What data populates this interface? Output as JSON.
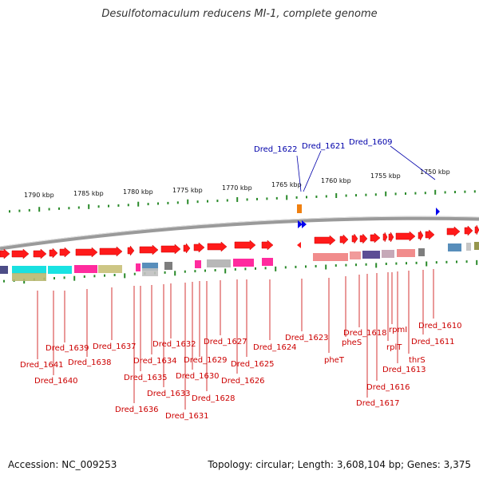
{
  "title": "Desulfotomaculum reducens MI-1, complete genome",
  "footer": {
    "accession": "Accession: NC_009253",
    "info": "Topology: circular; Length: 3,608,104 bp; Genes: 3,375"
  },
  "colors": {
    "forward_gene": "#ff1a1a",
    "reverse_gene": "#0000ee",
    "ruler_tick": "#2a8a2a",
    "label_red": "#cc0000",
    "label_blue": "#0000aa"
  },
  "kbp_labels": [
    "1790 kbp",
    "1785 kbp",
    "1780 kbp",
    "1775 kbp",
    "1770 kbp",
    "1765 kbp",
    "1760 kbp",
    "1755 kbp",
    "1750 kbp"
  ],
  "top_labels": [
    "Dred_1622",
    "Dred_1621",
    "Dred_1609"
  ],
  "bottom_labels": [
    "Dred_1641",
    "Dred_1640",
    "Dred_1639",
    "Dred_1638",
    "Dred_1637",
    "Dred_1636",
    "Dred_1635",
    "Dred_1634",
    "Dred_1633",
    "Dred_1632",
    "Dred_1631",
    "Dred_1630",
    "Dred_1629",
    "Dred_1628",
    "Dred_1627",
    "Dred_1626",
    "Dred_1625",
    "Dred_1624",
    "Dred_1623",
    "pheT",
    "pheS",
    "Dred_1618",
    "Dred_1617",
    "Dred_1616",
    "rplT",
    "rpmI",
    "Dred_1613",
    "thrS",
    "Dred_1611",
    "Dred_1610"
  ]
}
